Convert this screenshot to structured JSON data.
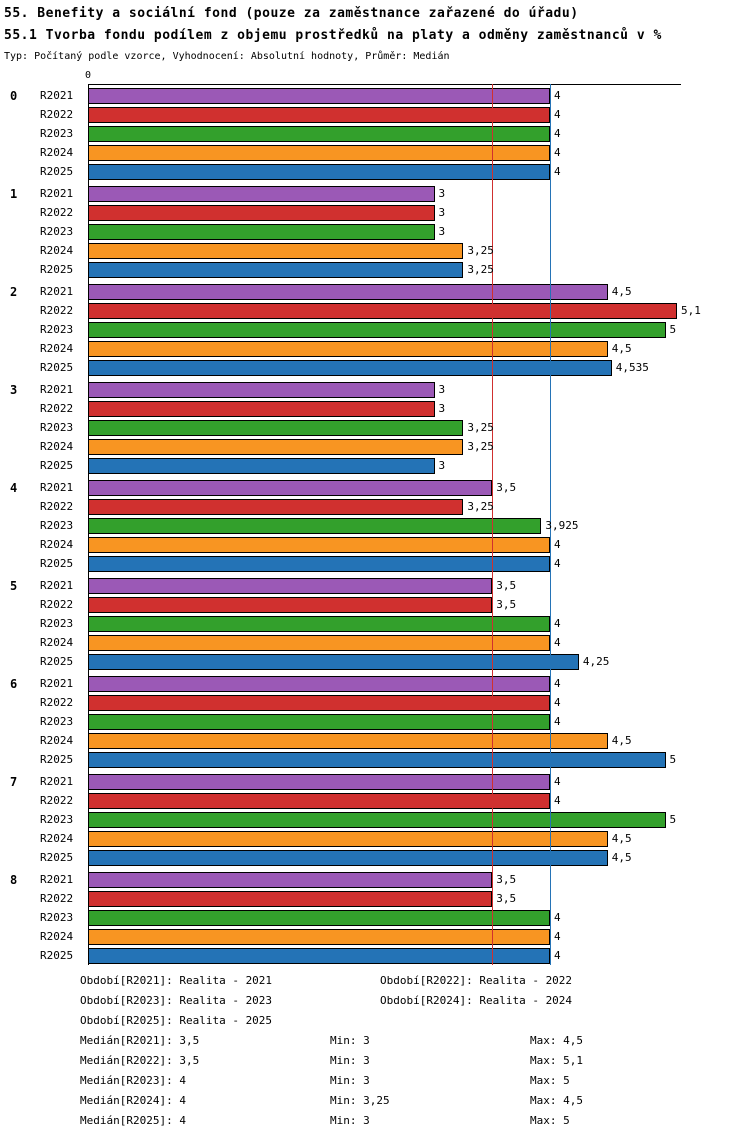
{
  "header": {
    "title": "55. Benefity a sociální fond (pouze za zaměstnance zařazené do úřadu)",
    "subtitle": "55.1 Tvorba fondu podílem z objemu prostředků na platy a odměny zaměstnanců v %",
    "meta": "Typ: Počítaný podle vzorce, Vyhodnocení: Absolutní hodnoty, Průměr: Medián"
  },
  "chart_data": {
    "type": "bar",
    "orientation": "horizontal",
    "x_axis": {
      "min": 0,
      "max": 5.135,
      "tick_labels": [
        "0"
      ]
    },
    "categories": [
      "0",
      "1",
      "2",
      "3",
      "4",
      "5",
      "6",
      "7",
      "8"
    ],
    "series": [
      {
        "name": "R2021",
        "color": "#9b59b6",
        "values": [
          4,
          3,
          4.5,
          3,
          3.5,
          3.5,
          4,
          4,
          3.5
        ]
      },
      {
        "name": "R2022",
        "color": "#d0302f",
        "values": [
          4,
          3,
          5.1,
          3,
          3.25,
          3.5,
          4,
          4,
          3.5
        ]
      },
      {
        "name": "R2023",
        "color": "#33a02c",
        "values": [
          4,
          3,
          5,
          3.25,
          3.925,
          4,
          4,
          5,
          4
        ]
      },
      {
        "name": "R2024",
        "color": "#f89522",
        "values": [
          4,
          3.25,
          4.5,
          3.25,
          4,
          4,
          4.5,
          4.5,
          4
        ]
      },
      {
        "name": "R2025",
        "color": "#2473b6",
        "values": [
          4,
          3.25,
          4.535,
          3,
          4,
          4.25,
          5,
          4.5,
          4
        ]
      }
    ],
    "median_lines": [
      {
        "value": 3.5,
        "color": "#d0302f"
      },
      {
        "value": 4,
        "color": "#2473b6"
      }
    ],
    "decimal_separator": ",",
    "grid": false,
    "legend_position": "bottom"
  },
  "legend_items": [
    "Období[R2021]: Realita - 2021",
    "Období[R2022]: Realita - 2022",
    "Období[R2023]: Realita - 2023",
    "Období[R2024]: Realita - 2024",
    "Období[R2025]: Realita - 2025"
  ],
  "stats": [
    {
      "median": "Medián[R2021]: 3,5",
      "min": "Min: 3",
      "max": "Max: 4,5"
    },
    {
      "median": "Medián[R2022]: 3,5",
      "min": "Min: 3",
      "max": "Max: 5,1"
    },
    {
      "median": "Medián[R2023]: 4",
      "min": "Min: 3",
      "max": "Max: 5"
    },
    {
      "median": "Medián[R2024]: 4",
      "min": "Min: 3,25",
      "max": "Max: 4,5"
    },
    {
      "median": "Medián[R2025]: 4",
      "min": "Min: 3",
      "max": "Max: 5"
    }
  ]
}
